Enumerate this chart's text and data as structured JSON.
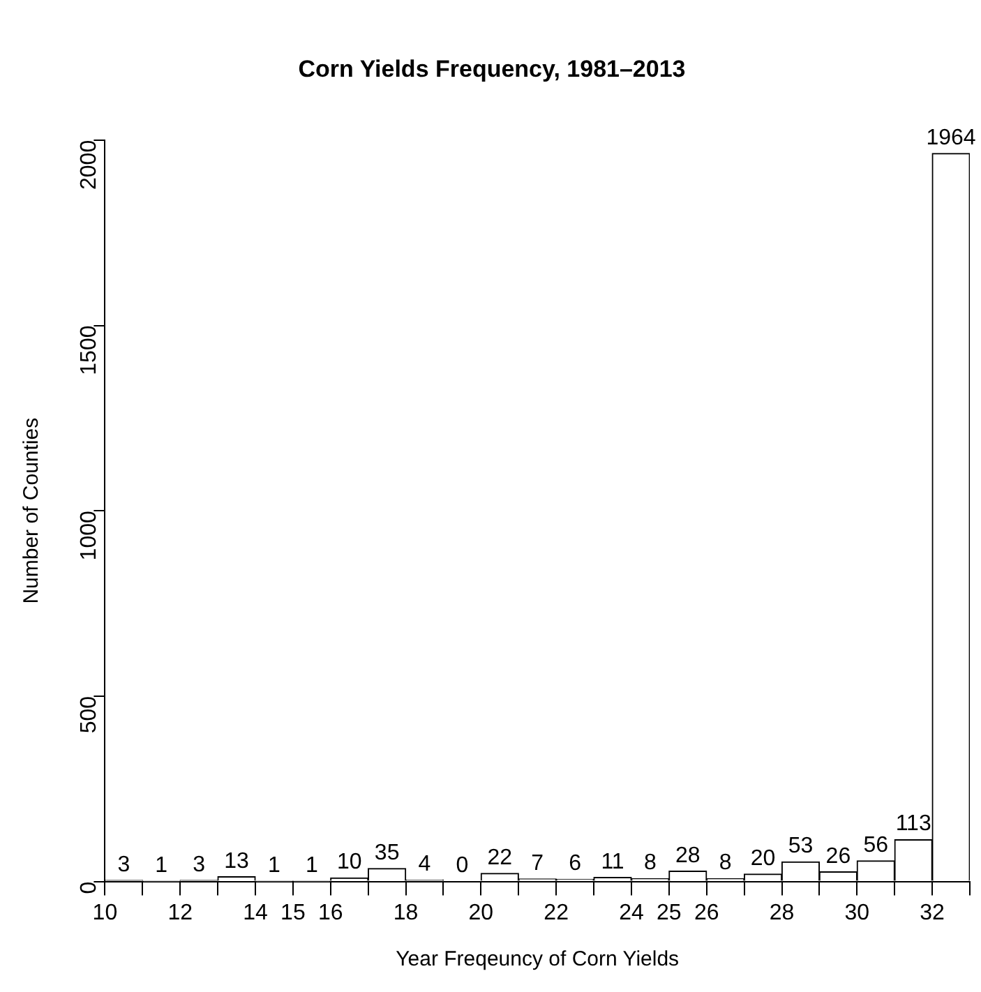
{
  "chart_data": {
    "type": "histogram",
    "title": "Corn Yields Frequency, 1981–2013",
    "xlabel": "Year Freqeuncy of Corn Yields",
    "ylabel": "Number of Counties",
    "bins": [
      10,
      11,
      12,
      13,
      14,
      15,
      16,
      17,
      18,
      19,
      20,
      21,
      22,
      23,
      24,
      25,
      26,
      27,
      28,
      29,
      30,
      31,
      32,
      33
    ],
    "values": [
      3,
      1,
      3,
      13,
      1,
      1,
      10,
      35,
      4,
      0,
      22,
      7,
      6,
      11,
      8,
      28,
      8,
      20,
      53,
      26,
      56,
      113,
      1964
    ],
    "color": "#ffffff",
    "data_labels": true,
    "grid": false,
    "legend": false,
    "xlim": [
      10,
      33
    ],
    "xticks": [
      10,
      {
        "value": 11,
        "label": null
      },
      12,
      {
        "value": 13,
        "label": null
      },
      14,
      15,
      16,
      {
        "value": 17,
        "label": null
      },
      18,
      {
        "value": 19,
        "label": null
      },
      20,
      {
        "value": 21,
        "label": null
      },
      22,
      {
        "value": 23,
        "label": null
      },
      24,
      25,
      26,
      {
        "value": 27,
        "label": null
      },
      28,
      {
        "value": 29,
        "label": null
      },
      30,
      {
        "value": 31,
        "label": null
      },
      32,
      {
        "value": 33,
        "label": null
      }
    ],
    "ylim": [
      0,
      2000
    ],
    "yticks": [
      0,
      500,
      1000,
      1500,
      2000
    ]
  }
}
